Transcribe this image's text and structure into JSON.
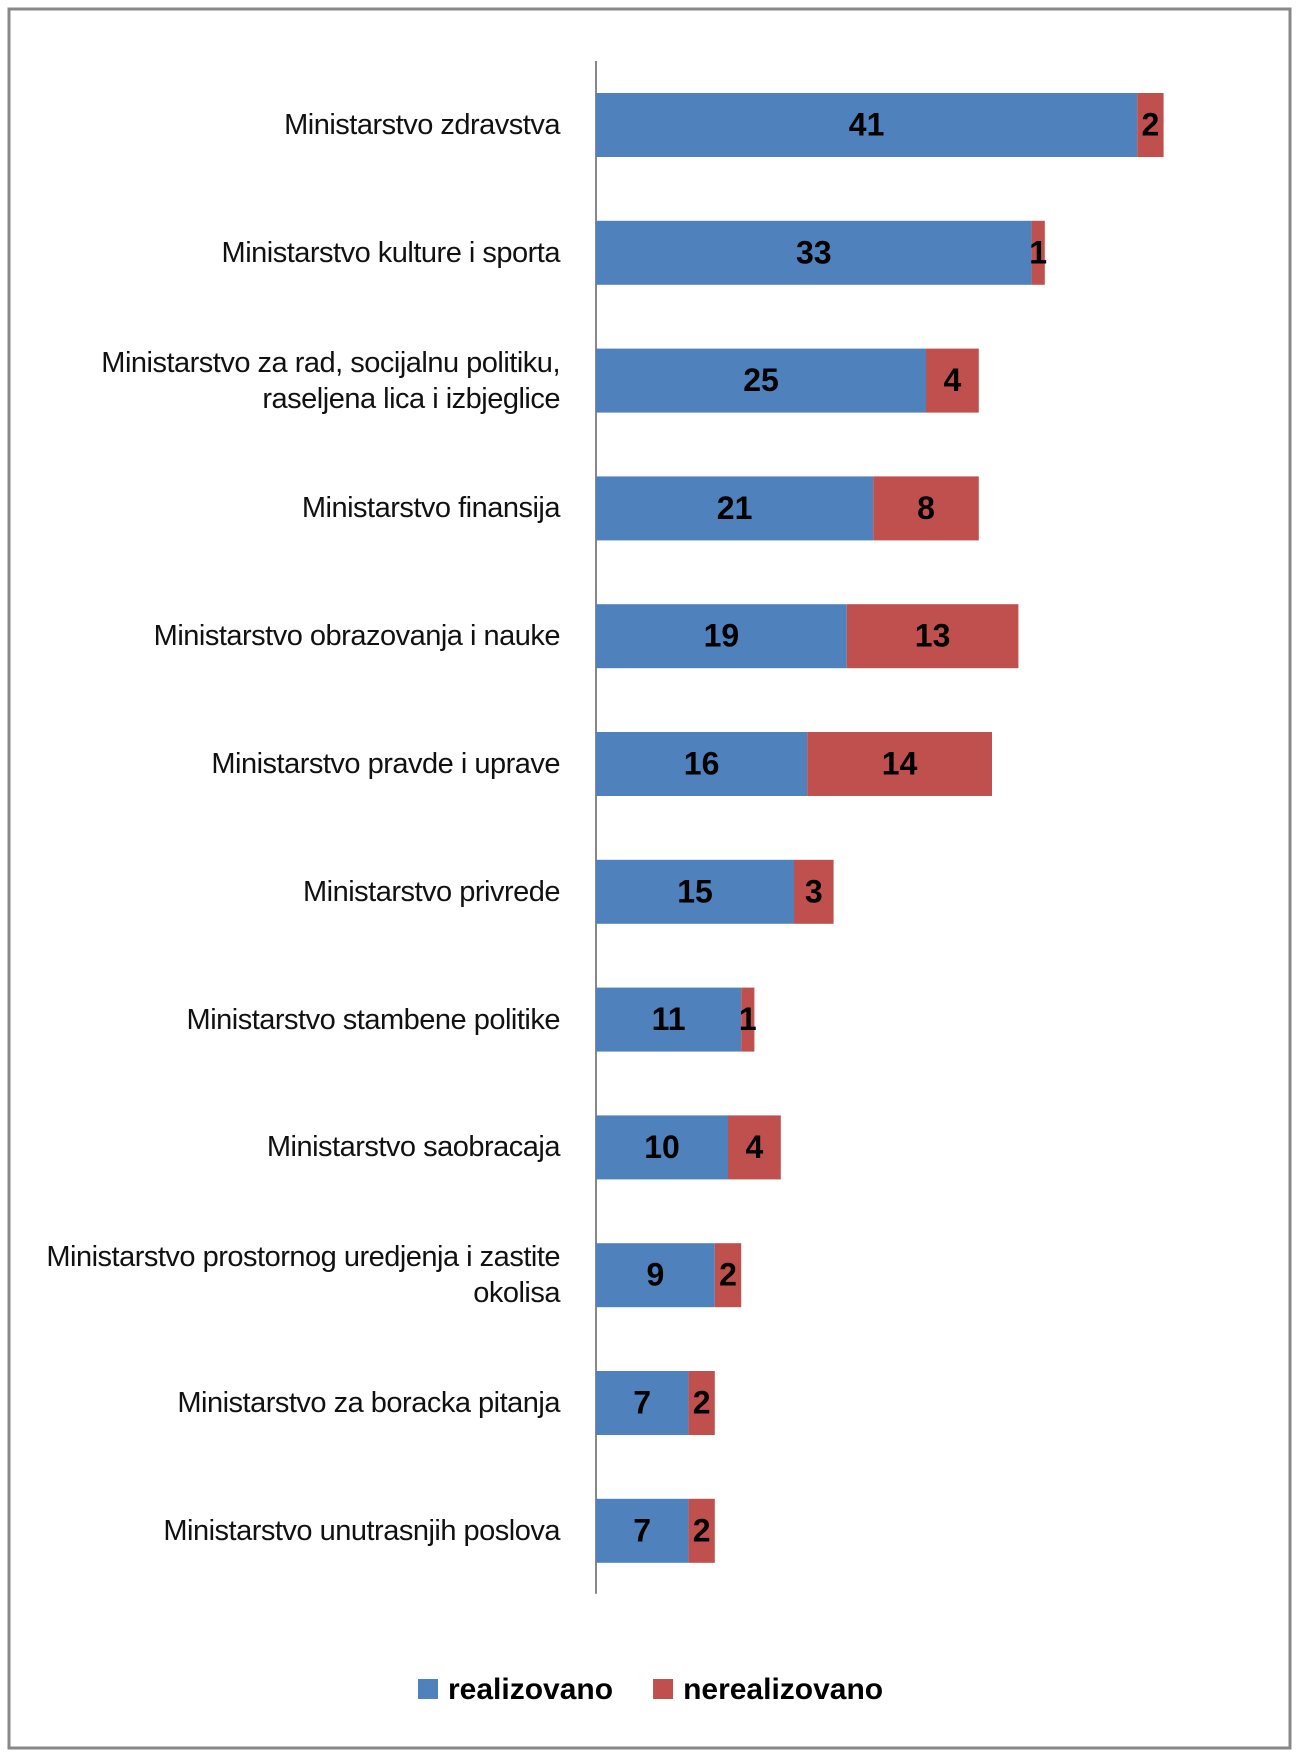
{
  "chart_data": {
    "type": "stacked_bar_horizontal",
    "categories": [
      "Ministarstvo zdravstva",
      "Ministarstvo kulture i sporta",
      "Ministarstvo za rad, socijalnu politiku, raseljena lica i izbjeglice",
      "Ministarstvo finansija",
      "Ministarstvo obrazovanja i nauke",
      "Ministarstvo pravde i uprave",
      "Ministarstvo privrede",
      "Ministarstvo stambene politike",
      "Ministarstvo saobracaja",
      "Ministarstvo prostornog uredjenja i zastite okolisa",
      "Ministarstvo za boracka pitanja",
      "Ministarstvo unutrasnjih poslova"
    ],
    "series": [
      {
        "name": "realizovano",
        "color": "#4f81bd",
        "values": [
          41,
          33,
          25,
          21,
          19,
          16,
          15,
          11,
          10,
          9,
          7,
          7
        ]
      },
      {
        "name": "nerealizovano",
        "color": "#c0504d",
        "values": [
          2,
          1,
          4,
          8,
          13,
          14,
          3,
          1,
          4,
          2,
          2,
          2
        ]
      }
    ],
    "legend": "bottom"
  }
}
